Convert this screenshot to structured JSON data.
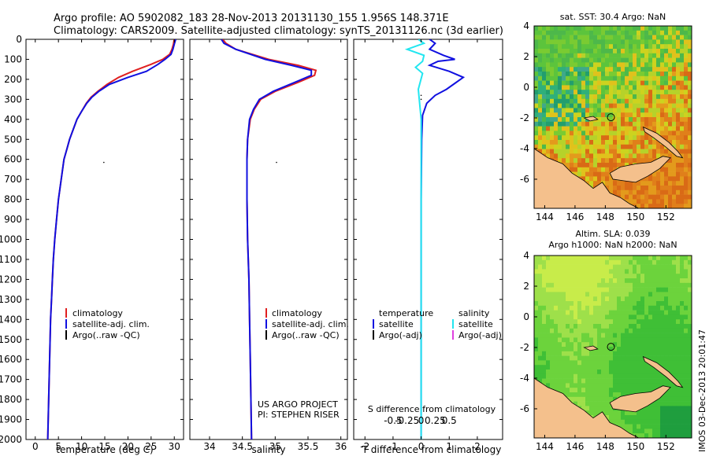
{
  "header": {
    "line1": "Argo profile: AO 5902082_183 28-Nov-2013 20131130_155 1.956S 148.371E",
    "line2": "Climatology: CARS2009. Satellite-adjusted climatology: synTS_20131126.nc (3d earlier)"
  },
  "colors": {
    "climatology": "#e02020",
    "satellite": "#1010e0",
    "argo": "#000000",
    "salinity_satellite": "#22e6f0",
    "salinity_argo": "#e040e0",
    "land": "#f4c08c"
  },
  "depth_axis": {
    "min": 0,
    "max": 2000,
    "ticks": [
      "0",
      "100",
      "200",
      "300",
      "400",
      "500",
      "600",
      "700",
      "800",
      "900",
      "1000",
      "1100",
      "1200",
      "1300",
      "1400",
      "1500",
      "1600",
      "1700",
      "1800",
      "1900",
      "2000"
    ]
  },
  "chart_data": [
    {
      "type": "line",
      "id": "temperature",
      "xlabel": "temperature (deg C)",
      "xlim": [
        -2,
        32
      ],
      "ylim": [
        2000,
        0
      ],
      "xticks": [
        "0",
        "5",
        "10",
        "15",
        "20",
        "25",
        "30"
      ],
      "xtick_values": [
        0,
        5,
        10,
        15,
        20,
        25,
        30
      ],
      "legend": [
        "climatology",
        "satellite-adj. clim.",
        "Argo(..raw -QC)"
      ],
      "series": [
        {
          "name": "climatology",
          "points": [
            [
              30,
              0
            ],
            [
              29.8,
              25
            ],
            [
              29.5,
              50
            ],
            [
              29,
              75
            ],
            [
              27.5,
              100
            ],
            [
              25,
              125
            ],
            [
              21,
              160
            ],
            [
              18,
              190
            ],
            [
              15.5,
              225
            ],
            [
              13.5,
              260
            ],
            [
              12,
              290
            ],
            [
              11,
              320
            ],
            [
              10,
              360
            ],
            [
              9,
              400
            ],
            [
              8.2,
              450
            ],
            [
              7.4,
              500
            ],
            [
              6.8,
              550
            ],
            [
              6.2,
              600
            ],
            [
              5.6,
              700
            ],
            [
              5.0,
              800
            ],
            [
              4.6,
              900
            ],
            [
              4.2,
              1000
            ],
            [
              3.9,
              1100
            ],
            [
              3.7,
              1200
            ],
            [
              3.5,
              1300
            ],
            [
              3.3,
              1400
            ],
            [
              3.2,
              1500
            ],
            [
              3.1,
              1600
            ],
            [
              3.0,
              1700
            ],
            [
              2.9,
              1800
            ],
            [
              2.8,
              1900
            ],
            [
              2.7,
              2000
            ]
          ]
        },
        {
          "name": "satellite-adj. clim.",
          "points": [
            [
              30.3,
              0
            ],
            [
              30,
              25
            ],
            [
              29.7,
              50
            ],
            [
              29.3,
              75
            ],
            [
              28,
              100
            ],
            [
              26.5,
              125
            ],
            [
              24,
              160
            ],
            [
              20,
              190
            ],
            [
              16,
              225
            ],
            [
              13.7,
              260
            ],
            [
              12.2,
              290
            ],
            [
              11.1,
              320
            ],
            [
              10,
              360
            ],
            [
              9,
              400
            ],
            [
              8.2,
              450
            ],
            [
              7.4,
              500
            ],
            [
              6.8,
              550
            ],
            [
              6.2,
              600
            ],
            [
              5.6,
              700
            ],
            [
              5.0,
              800
            ],
            [
              4.6,
              900
            ],
            [
              4.2,
              1000
            ],
            [
              3.9,
              1100
            ],
            [
              3.7,
              1200
            ],
            [
              3.5,
              1300
            ],
            [
              3.3,
              1400
            ],
            [
              3.2,
              1500
            ],
            [
              3.1,
              1600
            ],
            [
              3.0,
              1700
            ],
            [
              2.9,
              1800
            ],
            [
              2.8,
              1900
            ],
            [
              2.7,
              2000
            ]
          ]
        }
      ],
      "argo_points": [
        [
          14.8,
          615
        ]
      ]
    },
    {
      "type": "line",
      "id": "salinity",
      "xlabel": "salinity",
      "xlim": [
        33.7,
        36.1
      ],
      "ylim": [
        2000,
        0
      ],
      "xticks": [
        "34",
        "34.5",
        "35",
        "35.5",
        "36"
      ],
      "xtick_values": [
        34,
        34.5,
        35,
        35.5,
        36
      ],
      "legend": [
        "climatology",
        "satellite-adj. clim.",
        "Argo(..raw -QC)"
      ],
      "annotation": [
        "US ARGO PROJECT",
        "PI: STEPHEN RISER"
      ],
      "series": [
        {
          "name": "climatology",
          "points": [
            [
              34.2,
              0
            ],
            [
              34.25,
              20
            ],
            [
              34.4,
              50
            ],
            [
              34.9,
              100
            ],
            [
              35.35,
              130
            ],
            [
              35.62,
              155
            ],
            [
              35.6,
              180
            ],
            [
              35.35,
              215
            ],
            [
              35.0,
              260
            ],
            [
              34.78,
              300
            ],
            [
              34.68,
              350
            ],
            [
              34.62,
              400
            ],
            [
              34.58,
              500
            ],
            [
              34.57,
              600
            ],
            [
              34.57,
              700
            ],
            [
              34.57,
              800
            ],
            [
              34.58,
              1000
            ],
            [
              34.6,
              1200
            ],
            [
              34.61,
              1400
            ],
            [
              34.62,
              1600
            ],
            [
              34.63,
              1800
            ],
            [
              34.64,
              2000
            ]
          ]
        },
        {
          "name": "satellite-adj. clim.",
          "points": [
            [
              34.18,
              0
            ],
            [
              34.22,
              20
            ],
            [
              34.4,
              50
            ],
            [
              34.85,
              100
            ],
            [
              35.25,
              130
            ],
            [
              35.55,
              155
            ],
            [
              35.55,
              180
            ],
            [
              35.3,
              215
            ],
            [
              34.97,
              260
            ],
            [
              34.76,
              300
            ],
            [
              34.67,
              350
            ],
            [
              34.61,
              400
            ],
            [
              34.58,
              500
            ],
            [
              34.57,
              600
            ],
            [
              34.57,
              700
            ],
            [
              34.57,
              800
            ],
            [
              34.58,
              1000
            ],
            [
              34.6,
              1200
            ],
            [
              34.61,
              1400
            ],
            [
              34.62,
              1600
            ],
            [
              34.63,
              1800
            ],
            [
              34.64,
              2000
            ]
          ]
        }
      ],
      "argo_points": [
        [
          35.02,
          615
        ]
      ]
    },
    {
      "type": "line",
      "id": "difference",
      "xlabel_top": "S difference from climatology",
      "xlabel": "T difference from climatology",
      "xlim": [
        -2.4,
        2.9
      ],
      "ylim": [
        2000,
        0
      ],
      "xticks_bottom": [
        "-2",
        "-1",
        "0",
        "1",
        "2"
      ],
      "xtick_values_bottom": [
        -2,
        -1,
        0,
        1,
        2
      ],
      "xticks_top": [
        "-0.5",
        "-0.25",
        "0",
        "0.25",
        "0.5"
      ],
      "xtick_values_top": [
        -1,
        -0.5,
        0,
        0.5,
        1
      ],
      "legend_temperature": {
        "title": "temperature",
        "entries": [
          "satellite",
          "Argo(-adj)"
        ]
      },
      "legend_salinity": {
        "title": "salinity",
        "entries": [
          "satellite",
          "Argo(-adj)"
        ]
      },
      "series": [
        {
          "name": "temperature satellite",
          "points": [
            [
              0.3,
              0
            ],
            [
              0.5,
              20
            ],
            [
              0.3,
              50
            ],
            [
              0.8,
              80
            ],
            [
              1.2,
              100
            ],
            [
              0.6,
              110
            ],
            [
              0.3,
              130
            ],
            [
              1.0,
              160
            ],
            [
              1.5,
              190
            ],
            [
              1.2,
              220
            ],
            [
              0.9,
              250
            ],
            [
              0.5,
              280
            ],
            [
              0.2,
              320
            ],
            [
              0.05,
              380
            ],
            [
              0.02,
              500
            ],
            [
              0,
              800
            ],
            [
              0,
              2000
            ]
          ]
        },
        {
          "name": "salinity satellite",
          "points": [
            [
              -0.1,
              0
            ],
            [
              0.1,
              20
            ],
            [
              -0.5,
              50
            ],
            [
              0.1,
              80
            ],
            [
              0.05,
              110
            ],
            [
              -0.2,
              140
            ],
            [
              0.05,
              170
            ],
            [
              -0.1,
              250
            ],
            [
              0,
              400
            ],
            [
              0,
              2000
            ]
          ]
        }
      ],
      "argo_points": [
        [
          0,
          280
        ],
        [
          0,
          300
        ]
      ]
    },
    {
      "type": "heatmap",
      "id": "sst_map",
      "title": "sat. SST: 30.4 Argo: NaN",
      "xticks": [
        "144",
        "146",
        "148",
        "150",
        "152"
      ],
      "xtick_values": [
        144,
        146,
        148,
        150,
        152
      ],
      "yticks": [
        "4",
        "2",
        "0",
        "-2",
        "-4",
        "-6"
      ],
      "ytick_values": [
        4,
        2,
        0,
        -2,
        -4,
        -6
      ],
      "xlim": [
        143.3,
        153.7
      ],
      "ylim": [
        -7.9,
        4
      ],
      "marker": [
        148.371,
        -1.956
      ]
    },
    {
      "type": "heatmap",
      "id": "sla_map",
      "title_line1": "Altim. SLA: 0.039",
      "title_line2": "Argo h1000: NaN h2000: NaN",
      "xticks": [
        "144",
        "146",
        "148",
        "150",
        "152"
      ],
      "xtick_values": [
        144,
        146,
        148,
        150,
        152
      ],
      "yticks": [
        "4",
        "2",
        "0",
        "-2",
        "-4",
        "-6"
      ],
      "ytick_values": [
        4,
        2,
        0,
        -2,
        -4,
        -6
      ],
      "xlim": [
        143.3,
        153.7
      ],
      "ylim": [
        -7.9,
        4
      ],
      "marker": [
        148.371,
        -1.956
      ]
    }
  ],
  "footer": {
    "vertical_stamp": "IMOS 03-Dec-2013 20:01:47"
  }
}
